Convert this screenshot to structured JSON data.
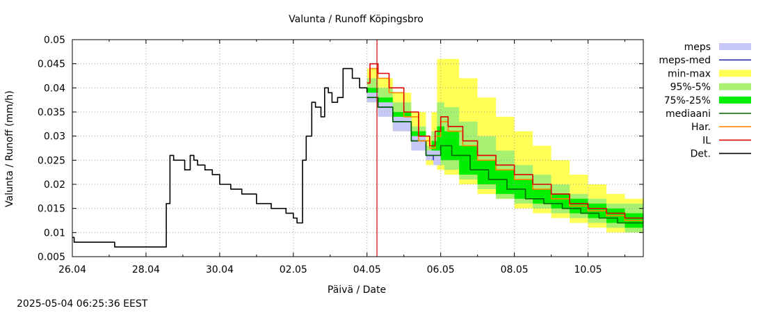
{
  "chart_data": {
    "type": "line",
    "title": "Valunta / Runoff  Köpingsbro",
    "xlabel": "Päivä / Date",
    "ylabel": "Valunta / Runoff (mm/h)",
    "ylim": [
      0.005,
      0.05
    ],
    "yticks": [
      "0.005",
      "0.01",
      "0.015",
      "0.02",
      "0.025",
      "0.03",
      "0.035",
      "0.04",
      "0.045",
      "0.05"
    ],
    "xrange_days": [
      0,
      15.5
    ],
    "xticks": [
      {
        "day": 0,
        "label": "26.04"
      },
      {
        "day": 2,
        "label": "28.04"
      },
      {
        "day": 4,
        "label": "30.04"
      },
      {
        "day": 6,
        "label": "02.05"
      },
      {
        "day": 8,
        "label": "04.05"
      },
      {
        "day": 10,
        "label": "06.05"
      },
      {
        "day": 12,
        "label": "08.05"
      },
      {
        "day": 14,
        "label": "10.05"
      }
    ],
    "grid": true,
    "legend_position": "right",
    "now_day": 8.27,
    "now_color": "#cc0000",
    "legend": [
      {
        "name": "meps",
        "color": "#c8c8f8",
        "kind": "band"
      },
      {
        "name": "meps-med",
        "color": "#3333aa",
        "kind": "line"
      },
      {
        "name": "min-max",
        "color": "#ffff55",
        "kind": "band"
      },
      {
        "name": "95%-5%",
        "color": "#a8f070",
        "kind": "band"
      },
      {
        "name": "75%-25%",
        "color": "#00ee00",
        "kind": "band"
      },
      {
        "name": "mediaani",
        "color": "#006400",
        "kind": "line"
      },
      {
        "name": "Har.",
        "color": "#ff8800",
        "kind": "line"
      },
      {
        "name": "IL",
        "color": "#dd0000",
        "kind": "line"
      },
      {
        "name": "Det.",
        "color": "#000000",
        "kind": "line"
      }
    ],
    "series": [
      {
        "name": "Det.",
        "color": "#000000",
        "x": [
          0,
          0.05,
          0.1,
          1.1,
          1.15,
          2.5,
          2.55,
          2.65,
          2.75,
          2.85,
          3.05,
          3.2,
          3.3,
          3.4,
          3.6,
          3.8,
          4.0,
          4.3,
          4.6,
          5.0,
          5.4,
          5.8,
          6.0,
          6.1,
          6.15,
          6.25,
          6.35,
          6.5,
          6.6,
          6.75,
          6.85,
          6.95,
          7.05,
          7.2,
          7.35,
          7.45,
          7.6,
          7.8,
          8.0
        ],
        "y": [
          0.009,
          0.008,
          0.008,
          0.008,
          0.007,
          0.007,
          0.016,
          0.026,
          0.025,
          0.025,
          0.023,
          0.026,
          0.025,
          0.024,
          0.023,
          0.022,
          0.02,
          0.019,
          0.018,
          0.016,
          0.015,
          0.014,
          0.013,
          0.012,
          0.012,
          0.025,
          0.03,
          0.037,
          0.036,
          0.034,
          0.04,
          0.039,
          0.037,
          0.038,
          0.044,
          0.044,
          0.042,
          0.04,
          0.039
        ]
      },
      {
        "name": "IL",
        "color": "#dd0000",
        "x": [
          8.0,
          8.08,
          8.3,
          8.6,
          9.0,
          9.4,
          9.7,
          9.85,
          10.0,
          10.2,
          10.6,
          11.0,
          11.5,
          12.0,
          12.5,
          13.0,
          13.5,
          14.0,
          14.5,
          15.0,
          15.5
        ],
        "y": [
          0.041,
          0.045,
          0.043,
          0.04,
          0.035,
          0.03,
          0.028,
          0.031,
          0.034,
          0.032,
          0.029,
          0.026,
          0.024,
          0.022,
          0.02,
          0.018,
          0.016,
          0.015,
          0.014,
          0.013,
          0.013
        ]
      },
      {
        "name": "Har.",
        "color": "#ff8800",
        "x": [
          8.0,
          8.08,
          8.3,
          8.6,
          9.0,
          9.4,
          9.7,
          9.85,
          10.0,
          10.2,
          10.6,
          11.0,
          11.5,
          12.0,
          12.5,
          13.0,
          13.5,
          14.0,
          14.5,
          15.0,
          15.5
        ],
        "y": [
          0.041,
          0.044,
          0.042,
          0.039,
          0.034,
          0.029,
          0.0275,
          0.03,
          0.033,
          0.031,
          0.028,
          0.025,
          0.023,
          0.021,
          0.019,
          0.017,
          0.0155,
          0.0145,
          0.0135,
          0.0125,
          0.0125
        ]
      },
      {
        "name": "mediaani",
        "color": "#006400",
        "x": [
          8.0,
          8.3,
          8.7,
          9.2,
          9.6,
          9.8,
          10.0,
          10.3,
          10.8,
          11.3,
          11.8,
          12.3,
          12.8,
          13.3,
          13.8,
          14.3,
          14.8,
          15.5
        ],
        "y": [
          0.038,
          0.036,
          0.033,
          0.029,
          0.026,
          0.026,
          0.028,
          0.026,
          0.023,
          0.021,
          0.019,
          0.017,
          0.016,
          0.015,
          0.014,
          0.013,
          0.012,
          0.012
        ]
      },
      {
        "name": "meps-med",
        "color": "#3333aa",
        "x": [
          8.0,
          8.3,
          8.7,
          9.2,
          9.6,
          9.8
        ],
        "y": [
          0.038,
          0.036,
          0.033,
          0.029,
          0.026,
          0.025
        ]
      }
    ],
    "bands": [
      {
        "name": "meps",
        "color": "#c8c8f8",
        "x": [
          8.0,
          8.3,
          8.7,
          9.2,
          9.6,
          9.8,
          10.0
        ],
        "lo": [
          0.037,
          0.034,
          0.031,
          0.027,
          0.025,
          0.024,
          0.024
        ],
        "hi": [
          0.039,
          0.037,
          0.034,
          0.03,
          0.027,
          0.027,
          0.027
        ]
      },
      {
        "name": "min-max",
        "color": "#ffff55",
        "x": [
          8.0,
          8.3,
          8.7,
          9.2,
          9.6,
          9.75,
          9.9,
          10.1,
          10.5,
          11.0,
          11.5,
          12.0,
          12.5,
          13.0,
          13.5,
          14.0,
          14.5,
          15.0,
          15.5
        ],
        "lo": [
          0.037,
          0.034,
          0.031,
          0.027,
          0.024,
          0.024,
          0.023,
          0.022,
          0.02,
          0.018,
          0.017,
          0.015,
          0.014,
          0.013,
          0.012,
          0.011,
          0.01,
          0.01,
          0.01
        ],
        "hi": [
          0.044,
          0.042,
          0.039,
          0.035,
          0.03,
          0.035,
          0.046,
          0.046,
          0.042,
          0.038,
          0.034,
          0.031,
          0.028,
          0.025,
          0.022,
          0.02,
          0.018,
          0.017,
          0.018
        ]
      },
      {
        "name": "95%-5%",
        "color": "#a8f070",
        "x": [
          8.0,
          8.3,
          8.7,
          9.2,
          9.6,
          9.75,
          9.9,
          10.1,
          10.5,
          11.0,
          11.5,
          12.0,
          12.5,
          13.0,
          13.5,
          14.0,
          14.5,
          15.0,
          15.5
        ],
        "lo": [
          0.037,
          0.035,
          0.032,
          0.028,
          0.025,
          0.025,
          0.024,
          0.023,
          0.021,
          0.019,
          0.017,
          0.016,
          0.015,
          0.014,
          0.013,
          0.012,
          0.011,
          0.01,
          0.01
        ],
        "hi": [
          0.042,
          0.04,
          0.037,
          0.032,
          0.028,
          0.031,
          0.037,
          0.036,
          0.033,
          0.03,
          0.027,
          0.024,
          0.022,
          0.02,
          0.018,
          0.017,
          0.016,
          0.016,
          0.016
        ]
      },
      {
        "name": "75%-25%",
        "color": "#00ee00",
        "x": [
          8.0,
          8.3,
          8.7,
          9.2,
          9.6,
          9.75,
          9.9,
          10.1,
          10.5,
          11.0,
          11.5,
          12.0,
          12.5,
          13.0,
          13.5,
          14.0,
          14.5,
          15.0,
          15.5
        ],
        "lo": [
          0.038,
          0.035,
          0.032,
          0.029,
          0.026,
          0.026,
          0.025,
          0.025,
          0.022,
          0.02,
          0.018,
          0.017,
          0.016,
          0.015,
          0.014,
          0.013,
          0.012,
          0.011,
          0.011
        ],
        "hi": [
          0.04,
          0.038,
          0.035,
          0.031,
          0.027,
          0.029,
          0.032,
          0.031,
          0.028,
          0.025,
          0.023,
          0.021,
          0.019,
          0.018,
          0.017,
          0.016,
          0.015,
          0.014,
          0.014
        ]
      }
    ]
  },
  "footer": {
    "timestamp": "2025-05-04 06:25:36 EEST"
  }
}
